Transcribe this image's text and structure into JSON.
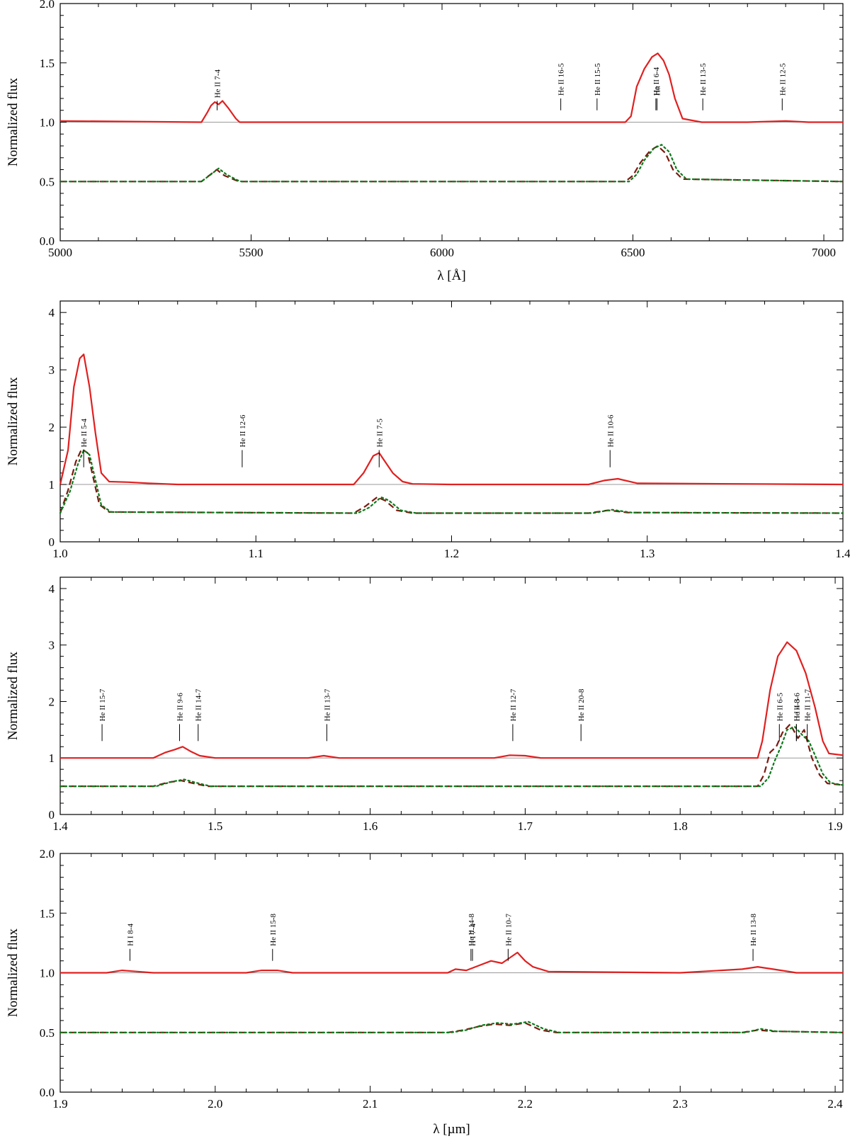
{
  "chart_data": [
    {
      "type": "line",
      "ylabel": "Normalized flux",
      "xlabel": "λ [Å]",
      "xlim": [
        5000,
        7050
      ],
      "ylim": [
        0,
        2.0
      ],
      "xticks": [
        5000,
        5500,
        6000,
        6500,
        7000
      ],
      "xtick_labels": [
        "5000",
        "5500",
        "6000",
        "6500",
        "7000"
      ],
      "yticks": [
        0,
        0.5,
        1.0,
        1.5,
        2.0
      ],
      "ytick_labels": [
        "0.0",
        "0.5",
        "1.0",
        "1.5",
        "2.0"
      ],
      "continuum": 1.0,
      "series": [
        {
          "style": "solid",
          "color": "#e02020",
          "baseline": 1.0,
          "x": [
            5000,
            5370,
            5385,
            5395,
            5405,
            5415,
            5425,
            5440,
            5460,
            5470,
            5600,
            6000,
            6300,
            6400,
            6480,
            6495,
            6510,
            6530,
            6550,
            6565,
            6580,
            6595,
            6610,
            6630,
            6680,
            6800,
            6900,
            6960,
            7050
          ],
          "y": [
            1.01,
            1.0,
            1.08,
            1.14,
            1.17,
            1.15,
            1.18,
            1.12,
            1.03,
            1.0,
            1.0,
            1.0,
            1.0,
            1.0,
            1.0,
            1.05,
            1.3,
            1.45,
            1.55,
            1.58,
            1.52,
            1.4,
            1.2,
            1.03,
            1.0,
            1.0,
            1.01,
            1.0,
            1.0
          ]
        },
        {
          "style": "dashed",
          "color": "#7a1a10",
          "baseline": 0.5,
          "x": [
            5000,
            5370,
            5390,
            5410,
            5430,
            5460,
            5470,
            6000,
            6480,
            6500,
            6520,
            6545,
            6565,
            6585,
            6605,
            6630,
            7050
          ],
          "y": [
            0.5,
            0.5,
            0.55,
            0.6,
            0.55,
            0.51,
            0.5,
            0.5,
            0.5,
            0.55,
            0.66,
            0.76,
            0.8,
            0.74,
            0.6,
            0.52,
            0.5
          ]
        },
        {
          "style": "dotted",
          "color": "#0a7a1a",
          "baseline": 0.5,
          "x": [
            5000,
            5370,
            5395,
            5415,
            5435,
            5465,
            5475,
            6000,
            6490,
            6510,
            6530,
            6555,
            6575,
            6595,
            6615,
            6640,
            7050
          ],
          "y": [
            0.5,
            0.5,
            0.56,
            0.61,
            0.56,
            0.51,
            0.5,
            0.5,
            0.5,
            0.56,
            0.68,
            0.78,
            0.81,
            0.75,
            0.6,
            0.52,
            0.5
          ]
        }
      ],
      "line_ids": [
        {
          "label": "He II 7-4",
          "x": 5411,
          "y_tick_bottom": 1.1,
          "y_tick_top": 1.18
        },
        {
          "label": "He II 16-5",
          "x": 6311,
          "y_tick_bottom": 1.1,
          "y_tick_top": 1.2
        },
        {
          "label": "He II 15-5",
          "x": 6406,
          "y_tick_bottom": 1.1,
          "y_tick_top": 1.2
        },
        {
          "label": "He II 6-4",
          "x": 6560,
          "y_tick_bottom": 1.1,
          "y_tick_top": 1.2
        },
        {
          "label": "Hα",
          "x": 6563,
          "y_tick_bottom": 1.1,
          "y_tick_top": 1.2
        },
        {
          "label": "He II 13-5",
          "x": 6683,
          "y_tick_bottom": 1.1,
          "y_tick_top": 1.2
        },
        {
          "label": "He II 12-5",
          "x": 6891,
          "y_tick_bottom": 1.1,
          "y_tick_top": 1.2
        }
      ]
    },
    {
      "type": "line",
      "ylabel": "Normalized flux",
      "xlabel": "",
      "xlim": [
        1.0,
        1.4
      ],
      "ylim": [
        0,
        4.2
      ],
      "xticks": [
        1.0,
        1.1,
        1.2,
        1.3,
        1.4
      ],
      "xtick_labels": [
        "1.0",
        "1.1",
        "1.2",
        "1.3",
        "1.4"
      ],
      "yticks": [
        0,
        1,
        2,
        3,
        4
      ],
      "ytick_labels": [
        "0",
        "1",
        "2",
        "3",
        "4"
      ],
      "continuum": 1.0,
      "series": [
        {
          "style": "solid",
          "color": "#e02020",
          "baseline": 1.0,
          "x": [
            1.0,
            1.004,
            1.007,
            1.01,
            1.012,
            1.015,
            1.018,
            1.021,
            1.025,
            1.035,
            1.045,
            1.06,
            1.1,
            1.15,
            1.155,
            1.16,
            1.163,
            1.166,
            1.17,
            1.175,
            1.18,
            1.2,
            1.27,
            1.278,
            1.285,
            1.295,
            1.4
          ],
          "y": [
            1.0,
            1.6,
            2.7,
            3.2,
            3.27,
            2.7,
            1.9,
            1.2,
            1.05,
            1.04,
            1.02,
            1.0,
            1.0,
            1.0,
            1.2,
            1.5,
            1.55,
            1.4,
            1.2,
            1.05,
            1.01,
            1.0,
            1.0,
            1.07,
            1.1,
            1.02,
            1.0
          ]
        },
        {
          "style": "dashed",
          "color": "#7a1a10",
          "baseline": 0.5,
          "x": [
            1.0,
            1.004,
            1.008,
            1.011,
            1.014,
            1.017,
            1.02,
            1.025,
            1.15,
            1.156,
            1.162,
            1.166,
            1.172,
            1.18,
            1.27,
            1.28,
            1.29,
            1.4
          ],
          "y": [
            0.5,
            0.9,
            1.4,
            1.62,
            1.55,
            1.1,
            0.65,
            0.52,
            0.5,
            0.62,
            0.78,
            0.72,
            0.55,
            0.5,
            0.5,
            0.55,
            0.51,
            0.5
          ]
        },
        {
          "style": "dotted",
          "color": "#0a7a1a",
          "baseline": 0.5,
          "x": [
            1.0,
            1.005,
            1.009,
            1.012,
            1.015,
            1.018,
            1.021,
            1.026,
            1.152,
            1.158,
            1.164,
            1.168,
            1.174,
            1.182,
            1.272,
            1.282,
            1.292,
            1.4
          ],
          "y": [
            0.5,
            0.88,
            1.35,
            1.6,
            1.52,
            1.08,
            0.64,
            0.52,
            0.5,
            0.6,
            0.78,
            0.72,
            0.55,
            0.5,
            0.5,
            0.56,
            0.51,
            0.5
          ]
        }
      ],
      "line_ids": [
        {
          "label": "He II 5-4",
          "x": 1.012,
          "y_tick_bottom": 1.3,
          "y_tick_top": 1.6
        },
        {
          "label": "He II 12-6",
          "x": 1.093,
          "y_tick_bottom": 1.3,
          "y_tick_top": 1.6
        },
        {
          "label": "He II 7-5",
          "x": 1.163,
          "y_tick_bottom": 1.3,
          "y_tick_top": 1.6
        },
        {
          "label": "He II 10-6",
          "x": 1.281,
          "y_tick_bottom": 1.3,
          "y_tick_top": 1.6
        }
      ]
    },
    {
      "type": "line",
      "ylabel": "Normalized flux",
      "xlabel": "",
      "xlim": [
        1.4,
        1.905
      ],
      "ylim": [
        0,
        4.2
      ],
      "xticks": [
        1.4,
        1.5,
        1.6,
        1.7,
        1.8,
        1.9
      ],
      "xtick_labels": [
        "1.4",
        "1.5",
        "1.6",
        "1.7",
        "1.8",
        "1.9"
      ],
      "yticks": [
        0,
        1,
        2,
        3,
        4
      ],
      "ytick_labels": [
        "0",
        "1",
        "2",
        "3",
        "4"
      ],
      "continuum": 1.0,
      "series": [
        {
          "style": "solid",
          "color": "#e02020",
          "baseline": 1.0,
          "x": [
            1.4,
            1.46,
            1.468,
            1.474,
            1.479,
            1.484,
            1.49,
            1.5,
            1.56,
            1.57,
            1.58,
            1.68,
            1.69,
            1.7,
            1.71,
            1.85,
            1.853,
            1.858,
            1.863,
            1.869,
            1.875,
            1.881,
            1.887,
            1.892,
            1.896,
            1.905
          ],
          "y": [
            1.0,
            1.0,
            1.1,
            1.15,
            1.2,
            1.12,
            1.04,
            1.0,
            1.0,
            1.04,
            1.0,
            1.0,
            1.05,
            1.04,
            1.0,
            1.0,
            1.3,
            2.2,
            2.8,
            3.05,
            2.9,
            2.5,
            1.9,
            1.3,
            1.08,
            1.05
          ]
        },
        {
          "style": "dashed",
          "color": "#7a1a10",
          "baseline": 0.5,
          "x": [
            1.4,
            1.46,
            1.47,
            1.478,
            1.486,
            1.495,
            1.85,
            1.854,
            1.858,
            1.862,
            1.866,
            1.871,
            1.876,
            1.88,
            1.885,
            1.89,
            1.895,
            1.905
          ],
          "y": [
            0.5,
            0.5,
            0.57,
            0.6,
            0.55,
            0.5,
            0.5,
            0.7,
            1.1,
            1.2,
            1.45,
            1.6,
            1.35,
            1.5,
            1.0,
            0.7,
            0.55,
            0.52
          ]
        },
        {
          "style": "dotted",
          "color": "#0a7a1a",
          "baseline": 0.5,
          "x": [
            1.4,
            1.462,
            1.472,
            1.48,
            1.488,
            1.497,
            1.852,
            1.857,
            1.861,
            1.865,
            1.869,
            1.874,
            1.879,
            1.883,
            1.887,
            1.892,
            1.897,
            1.905
          ],
          "y": [
            0.5,
            0.5,
            0.58,
            0.62,
            0.56,
            0.5,
            0.5,
            0.65,
            0.95,
            1.2,
            1.5,
            1.55,
            1.4,
            1.3,
            1.05,
            0.72,
            0.56,
            0.52
          ]
        }
      ],
      "line_ids": [
        {
          "label": "He II 15-7",
          "x": 1.427,
          "y_tick_bottom": 1.3,
          "y_tick_top": 1.6
        },
        {
          "label": "He II 9-6",
          "x": 1.477,
          "y_tick_bottom": 1.3,
          "y_tick_top": 1.6
        },
        {
          "label": "He II 14-7",
          "x": 1.489,
          "y_tick_bottom": 1.3,
          "y_tick_top": 1.6
        },
        {
          "label": "He II 13-7",
          "x": 1.572,
          "y_tick_bottom": 1.3,
          "y_tick_top": 1.6
        },
        {
          "label": "He II 12-7",
          "x": 1.692,
          "y_tick_bottom": 1.3,
          "y_tick_top": 1.6
        },
        {
          "label": "He II 20-8",
          "x": 1.736,
          "y_tick_bottom": 1.3,
          "y_tick_top": 1.6
        },
        {
          "label": "He II 6-5",
          "x": 1.864,
          "y_tick_bottom": 1.3,
          "y_tick_top": 1.6
        },
        {
          "label": "He II 8-6",
          "x": 1.875,
          "y_tick_bottom": 1.3,
          "y_tick_top": 1.6
        },
        {
          "label": "H I 4-3",
          "x": 1.875,
          "y_tick_bottom": 1.3,
          "y_tick_top": 1.6
        },
        {
          "label": "He II 11-7",
          "x": 1.882,
          "y_tick_bottom": 1.3,
          "y_tick_top": 1.6
        }
      ]
    },
    {
      "type": "line",
      "ylabel": "Normalized flux",
      "xlabel": "λ [µm]",
      "xlim": [
        1.9,
        2.405
      ],
      "ylim": [
        0,
        2.0
      ],
      "xticks": [
        1.9,
        2.0,
        2.1,
        2.2,
        2.3,
        2.4
      ],
      "xtick_labels": [
        "1.9",
        "2.0",
        "2.1",
        "2.2",
        "2.3",
        "2.4"
      ],
      "yticks": [
        0,
        0.5,
        1.0,
        1.5,
        2.0
      ],
      "ytick_labels": [
        "0.0",
        "0.5",
        "1.0",
        "1.5",
        "2.0"
      ],
      "continuum": 1.0,
      "series": [
        {
          "style": "solid",
          "color": "#e02020",
          "baseline": 1.0,
          "x": [
            1.9,
            1.93,
            1.94,
            1.95,
            1.96,
            2.02,
            2.03,
            2.04,
            2.05,
            2.15,
            2.155,
            2.162,
            2.17,
            2.178,
            2.185,
            2.195,
            2.2,
            2.205,
            2.215,
            2.3,
            2.34,
            2.35,
            2.36,
            2.375,
            2.405
          ],
          "y": [
            1.0,
            1.0,
            1.02,
            1.01,
            1.0,
            1.0,
            1.02,
            1.02,
            1.0,
            1.0,
            1.03,
            1.02,
            1.06,
            1.1,
            1.08,
            1.17,
            1.1,
            1.05,
            1.01,
            1.0,
            1.03,
            1.05,
            1.03,
            1.0,
            1.0
          ]
        },
        {
          "style": "dashed",
          "color": "#7a1a10",
          "baseline": 0.5,
          "x": [
            1.9,
            2.15,
            2.16,
            2.17,
            2.18,
            2.19,
            2.2,
            2.21,
            2.22,
            2.34,
            2.35,
            2.36,
            2.405
          ],
          "y": [
            0.5,
            0.5,
            0.52,
            0.55,
            0.57,
            0.56,
            0.58,
            0.52,
            0.5,
            0.5,
            0.52,
            0.51,
            0.5
          ]
        },
        {
          "style": "dotted",
          "color": "#0a7a1a",
          "baseline": 0.5,
          "x": [
            1.9,
            2.152,
            2.162,
            2.172,
            2.182,
            2.192,
            2.202,
            2.212,
            2.222,
            2.342,
            2.352,
            2.362,
            2.405
          ],
          "y": [
            0.5,
            0.5,
            0.52,
            0.56,
            0.58,
            0.57,
            0.59,
            0.53,
            0.5,
            0.5,
            0.53,
            0.51,
            0.5
          ]
        }
      ],
      "line_ids": [
        {
          "label": "H I 8-4",
          "x": 1.945,
          "y_tick_bottom": 1.1,
          "y_tick_top": 1.2
        },
        {
          "label": "He II 15-8",
          "x": 2.037,
          "y_tick_bottom": 1.1,
          "y_tick_top": 1.2
        },
        {
          "label": "He II 14-8",
          "x": 2.165,
          "y_tick_bottom": 1.1,
          "y_tick_top": 1.2
        },
        {
          "label": "H I 7-4",
          "x": 2.166,
          "y_tick_bottom": 1.1,
          "y_tick_top": 1.2
        },
        {
          "label": "He II 10-7",
          "x": 2.189,
          "y_tick_bottom": 1.1,
          "y_tick_top": 1.2
        },
        {
          "label": "He II 13-8",
          "x": 2.347,
          "y_tick_bottom": 1.1,
          "y_tick_top": 1.2
        }
      ]
    }
  ]
}
